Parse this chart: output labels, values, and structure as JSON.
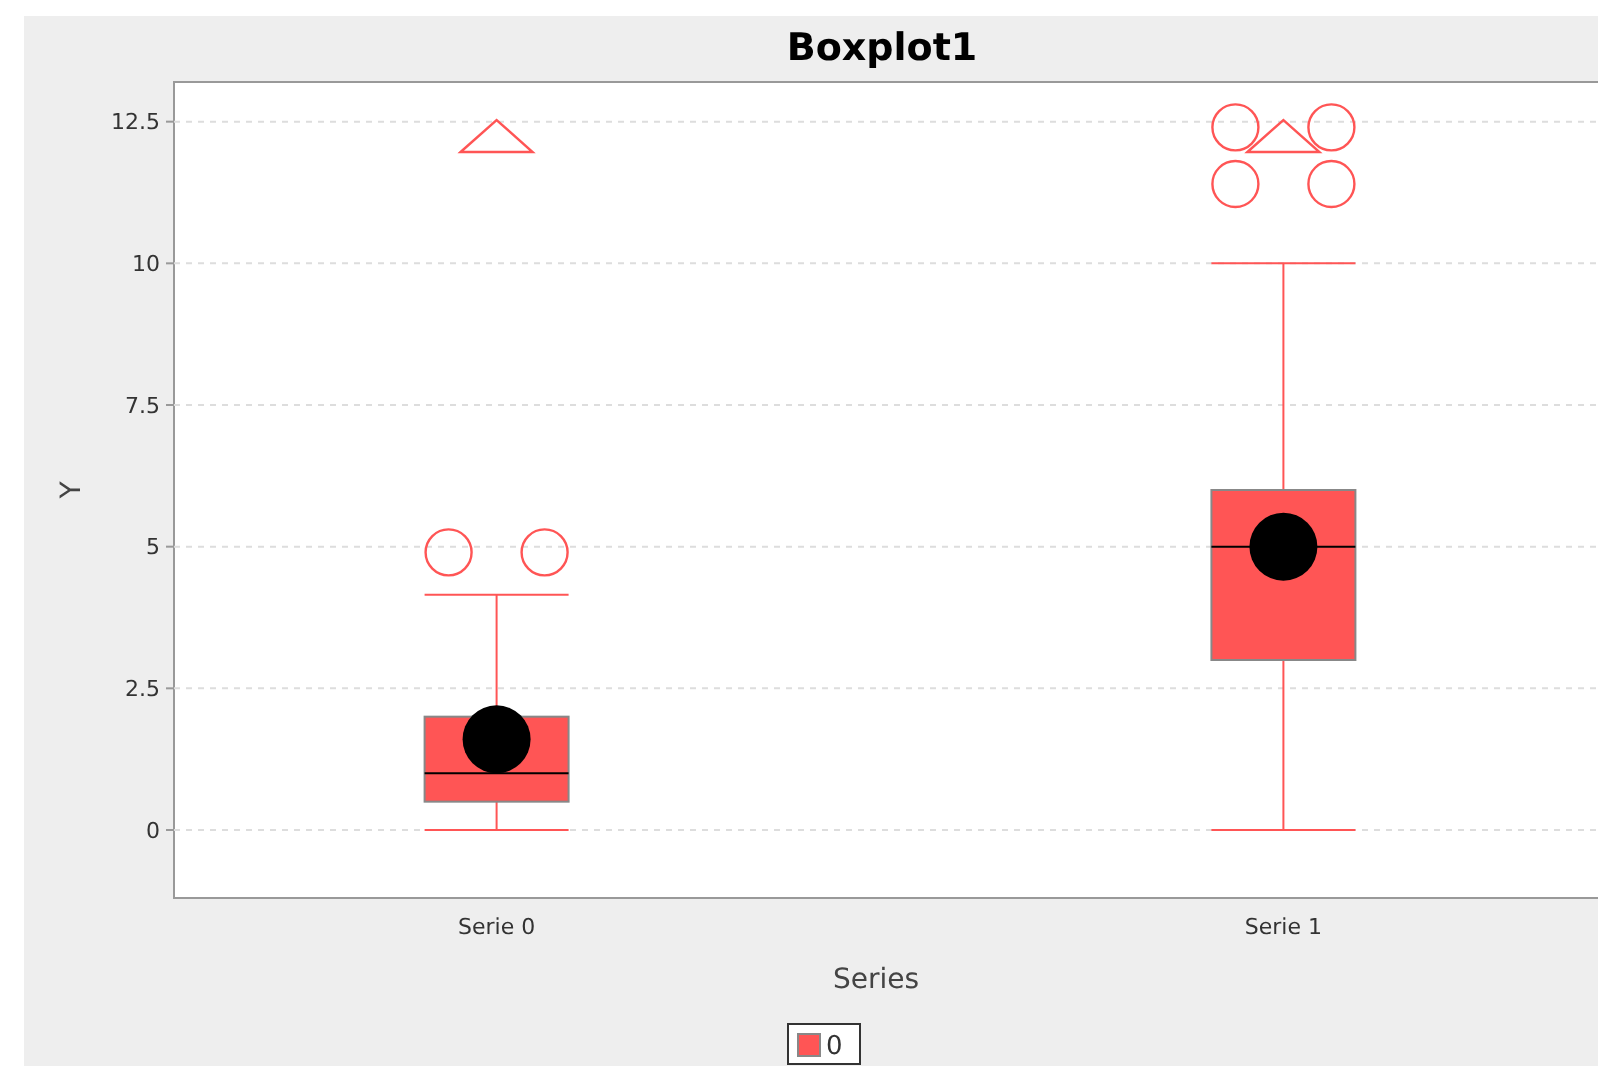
{
  "chart_data": {
    "type": "box",
    "title": "Boxplot1",
    "xlabel": "Series",
    "ylabel": "Y",
    "categories": [
      "Serie 0",
      "Serie 1"
    ],
    "series": [
      {
        "name": "0",
        "color": "#ff5555",
        "boxes": [
          {
            "low": 0,
            "q1": 0.5,
            "median": 1,
            "q3": 2,
            "high": 4.15,
            "mean": 1.6,
            "outliers": [
              4.9,
              4.9
            ]
          },
          {
            "low": 0,
            "q1": 3,
            "median": 5,
            "q3": 6,
            "high": 10,
            "mean": 5,
            "outliers": [
              11.4,
              11.4,
              12.4,
              12.4
            ]
          }
        ]
      }
    ],
    "ylim": [
      -1.2,
      13.2
    ],
    "yticks": [
      0,
      2.5,
      5,
      7.5,
      10,
      12.5
    ],
    "grid": "y",
    "legend": "bottom"
  }
}
